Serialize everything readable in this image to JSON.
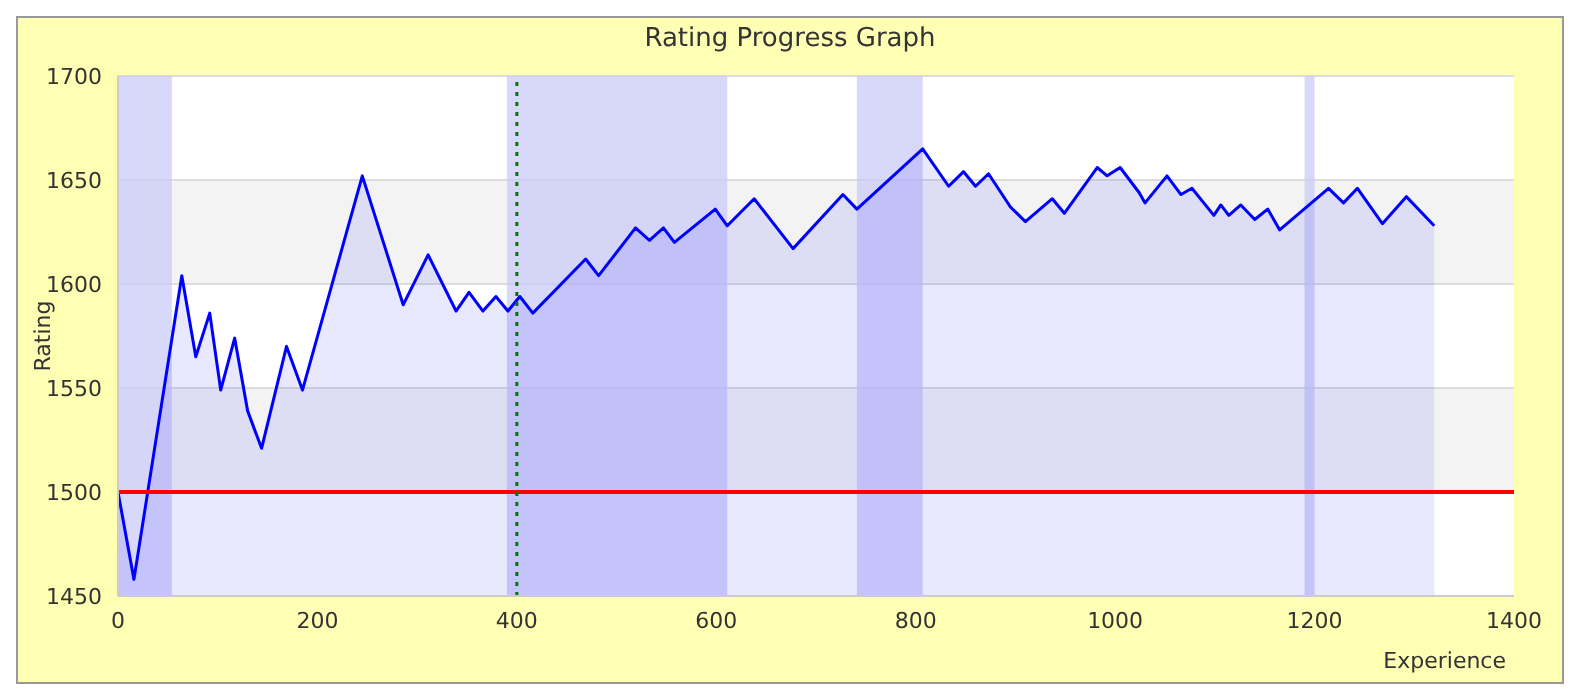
{
  "chart_data": {
    "type": "area",
    "title": "Rating Progress Graph",
    "xlabel": "Experience",
    "ylabel": "Rating",
    "x": [
      0,
      16,
      64,
      78,
      92,
      103,
      117,
      130,
      144,
      169,
      185,
      245,
      286,
      311,
      339,
      352,
      366,
      379,
      391,
      403,
      416,
      469,
      482,
      519,
      533,
      547,
      558,
      599,
      611,
      638,
      677,
      727,
      741,
      807,
      833,
      848,
      860,
      873,
      895,
      910,
      937,
      949,
      982,
      992,
      1005,
      1024,
      1030,
      1052,
      1066,
      1077,
      1099,
      1106,
      1114,
      1126,
      1140,
      1153,
      1165,
      1214,
      1229,
      1243,
      1268,
      1292,
      1320
    ],
    "series": [
      {
        "color": "#0000ff",
        "values": [
          1500,
          1458,
          1604,
          1565,
          1586,
          1549,
          1574,
          1539,
          1521,
          1570,
          1549,
          1652,
          1590,
          1614,
          1587,
          1596,
          1587,
          1594,
          1587,
          1594,
          1586,
          1612,
          1604,
          1627,
          1621,
          1627,
          1620,
          1636,
          1628,
          1641,
          1617,
          1643,
          1636,
          1665,
          1647,
          1654,
          1647,
          1653,
          1637,
          1630,
          1641,
          1634,
          1656,
          1652,
          1656,
          1644,
          1639,
          1652,
          1643,
          1646,
          1633,
          1638,
          1633,
          1638,
          1631,
          1636,
          1626,
          1646,
          1639,
          1646,
          1629,
          1642,
          1628
        ]
      }
    ],
    "xlim": [
      0,
      1400
    ],
    "xticks": [
      0,
      200,
      400,
      600,
      800,
      1000,
      1200,
      1400
    ],
    "ylim": [
      1450,
      1700
    ],
    "yticks": [
      1450,
      1500,
      1550,
      1600,
      1650,
      1700
    ],
    "grid": "y",
    "ref_lines": [
      {
        "axis": "y",
        "value": 1500,
        "color": "#ff0000",
        "line_style": "solid"
      },
      {
        "axis": "x",
        "value": 400,
        "color": "#007700",
        "line_style": "dotted"
      }
    ],
    "bands": [
      {
        "axis": "x",
        "from": 0,
        "to": 54,
        "color": "#c8c8fa"
      },
      {
        "axis": "x",
        "from": 390,
        "to": 611,
        "color": "#c8c8fa"
      },
      {
        "axis": "x",
        "from": 741,
        "to": 807,
        "color": "#c8c8fa"
      },
      {
        "axis": "x",
        "from": 1190,
        "to": 1200,
        "color": "#c8c8fa"
      }
    ]
  }
}
